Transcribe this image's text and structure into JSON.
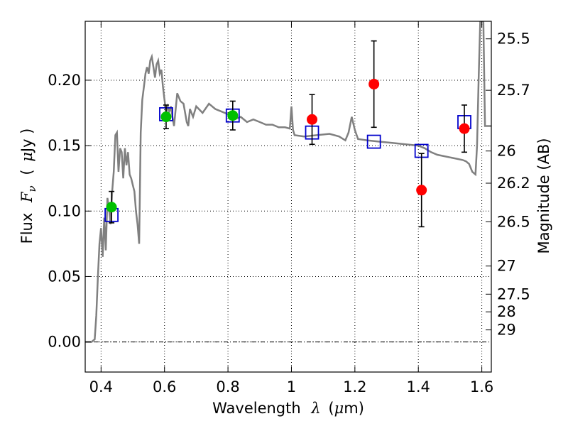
{
  "chart_data": {
    "type": "scatter",
    "title": "",
    "xlabel": "Wavelength  λ (μm)",
    "xlabel_parts": {
      "text": "Wavelength",
      "symbol": "λ",
      "unit_open": "(",
      "mu": "μ",
      "unit_close": "m)"
    },
    "ylabel": "Flux  Fν  ( μJy )",
    "ylabel_parts": {
      "text": "Flux",
      "symbol": "F",
      "subscript": "ν",
      "unit_open": "(",
      "mu": "μ",
      "unit_close": "Jy )"
    },
    "y2label": "Magnitude (AB)",
    "xlim": [
      0.35,
      1.63
    ],
    "ylim": [
      -0.023,
      0.245
    ],
    "x_ticks": [
      0.4,
      0.6,
      0.8,
      1.0,
      1.2,
      1.4,
      1.6
    ],
    "x_tick_labels": [
      "0.4",
      "0.6",
      "0.8",
      "1",
      "1.2",
      "1.4",
      "1.6"
    ],
    "y_ticks": [
      0.0,
      0.05,
      0.1,
      0.15,
      0.2
    ],
    "y_tick_labels": [
      "0.00",
      "0.05",
      "0.10",
      "0.15",
      "0.20"
    ],
    "y2_ticks": [
      {
        "label": "25.5",
        "flux": 0.2316
      },
      {
        "label": "25.7",
        "flux": 0.1923
      },
      {
        "label": "26",
        "flux": 0.1459
      },
      {
        "label": "26.2",
        "flux": 0.1213
      },
      {
        "label": "26.5",
        "flux": 0.0918
      },
      {
        "label": "27",
        "flux": 0.058
      },
      {
        "label": "27.5",
        "flux": 0.0365
      },
      {
        "label": "28",
        "flux": 0.023
      },
      {
        "label": "29",
        "flux": 0.0092
      }
    ],
    "grid": true,
    "zero_line": true,
    "colors": {
      "sed": "#808080",
      "green": "#00c000",
      "red": "#ff0000",
      "model_box": "#0000cc",
      "errorbar": "#000000"
    },
    "series": [
      {
        "kind": "line",
        "points": [
          [
            0.35,
            0
          ],
          [
            0.37,
            0
          ],
          [
            0.38,
            0.002
          ],
          [
            0.385,
            0.02
          ],
          [
            0.39,
            0.05
          ],
          [
            0.395,
            0.075
          ],
          [
            0.4,
            0.087
          ],
          [
            0.405,
            0.065
          ],
          [
            0.41,
            0.095
          ],
          [
            0.415,
            0.07
          ],
          [
            0.42,
            0.11
          ],
          [
            0.425,
            0.102
          ],
          [
            0.43,
            0.09
          ],
          [
            0.435,
            0.115
          ],
          [
            0.44,
            0.13
          ],
          [
            0.445,
            0.158
          ],
          [
            0.45,
            0.16
          ],
          [
            0.455,
            0.13
          ],
          [
            0.46,
            0.148
          ],
          [
            0.465,
            0.145
          ],
          [
            0.47,
            0.125
          ],
          [
            0.475,
            0.148
          ],
          [
            0.48,
            0.135
          ],
          [
            0.485,
            0.145
          ],
          [
            0.49,
            0.128
          ],
          [
            0.495,
            0.125
          ],
          [
            0.5,
            0.12
          ],
          [
            0.505,
            0.115
          ],
          [
            0.51,
            0.1
          ],
          [
            0.515,
            0.09
          ],
          [
            0.52,
            0.075
          ],
          [
            0.525,
            0.16
          ],
          [
            0.53,
            0.185
          ],
          [
            0.535,
            0.195
          ],
          [
            0.54,
            0.205
          ],
          [
            0.545,
            0.21
          ],
          [
            0.55,
            0.205
          ],
          [
            0.555,
            0.215
          ],
          [
            0.56,
            0.218
          ],
          [
            0.565,
            0.21
          ],
          [
            0.57,
            0.202
          ],
          [
            0.575,
            0.212
          ],
          [
            0.58,
            0.215
          ],
          [
            0.585,
            0.205
          ],
          [
            0.59,
            0.208
          ],
          [
            0.595,
            0.195
          ],
          [
            0.6,
            0.185
          ],
          [
            0.605,
            0.175
          ],
          [
            0.61,
            0.18
          ],
          [
            0.615,
            0.176
          ],
          [
            0.62,
            0.18
          ],
          [
            0.625,
            0.172
          ],
          [
            0.63,
            0.165
          ],
          [
            0.64,
            0.19
          ],
          [
            0.65,
            0.184
          ],
          [
            0.66,
            0.182
          ],
          [
            0.67,
            0.168
          ],
          [
            0.675,
            0.165
          ],
          [
            0.68,
            0.178
          ],
          [
            0.69,
            0.172
          ],
          [
            0.7,
            0.18
          ],
          [
            0.72,
            0.175
          ],
          [
            0.74,
            0.182
          ],
          [
            0.76,
            0.178
          ],
          [
            0.78,
            0.176
          ],
          [
            0.8,
            0.174
          ],
          [
            0.82,
            0.17
          ],
          [
            0.84,
            0.172
          ],
          [
            0.86,
            0.168
          ],
          [
            0.88,
            0.17
          ],
          [
            0.9,
            0.168
          ],
          [
            0.92,
            0.166
          ],
          [
            0.94,
            0.166
          ],
          [
            0.96,
            0.164
          ],
          [
            0.98,
            0.164
          ],
          [
            0.995,
            0.163
          ],
          [
            1.0,
            0.18
          ],
          [
            1.005,
            0.162
          ],
          [
            1.01,
            0.158
          ],
          [
            1.04,
            0.157
          ],
          [
            1.08,
            0.158
          ],
          [
            1.12,
            0.159
          ],
          [
            1.15,
            0.157
          ],
          [
            1.17,
            0.154
          ],
          [
            1.18,
            0.16
          ],
          [
            1.19,
            0.172
          ],
          [
            1.2,
            0.162
          ],
          [
            1.21,
            0.155
          ],
          [
            1.24,
            0.154
          ],
          [
            1.28,
            0.153
          ],
          [
            1.32,
            0.152
          ],
          [
            1.36,
            0.151
          ],
          [
            1.4,
            0.15
          ],
          [
            1.42,
            0.148
          ],
          [
            1.44,
            0.145
          ],
          [
            1.46,
            0.143
          ],
          [
            1.48,
            0.142
          ],
          [
            1.5,
            0.141
          ],
          [
            1.52,
            0.14
          ],
          [
            1.54,
            0.139
          ],
          [
            1.55,
            0.138
          ],
          [
            1.56,
            0.136
          ],
          [
            1.57,
            0.13
          ],
          [
            1.58,
            0.128
          ],
          [
            1.585,
            0.15
          ],
          [
            1.59,
            0.2
          ],
          [
            1.595,
            0.245
          ],
          [
            1.6,
            0.245
          ],
          [
            1.605,
            0.245
          ],
          [
            1.61,
            0.165
          ],
          [
            1.63,
            0.165
          ]
        ]
      },
      {
        "kind": "model-boxes",
        "points": [
          [
            0.433,
            0.097
          ],
          [
            0.605,
            0.174
          ],
          [
            0.815,
            0.173
          ],
          [
            1.065,
            0.16
          ],
          [
            1.26,
            0.153
          ],
          [
            1.41,
            0.146
          ],
          [
            1.545,
            0.168
          ]
        ]
      },
      {
        "kind": "measurements-green",
        "points": [
          [
            0.433,
            0.103,
            0.012
          ],
          [
            0.605,
            0.172,
            0.009
          ],
          [
            0.815,
            0.173,
            0.011
          ]
        ]
      },
      {
        "kind": "measurements-red",
        "points": [
          [
            1.065,
            0.17,
            0.019
          ],
          [
            1.26,
            0.197,
            0.033
          ],
          [
            1.41,
            0.116,
            0.028
          ],
          [
            1.545,
            0.163,
            0.018
          ]
        ]
      }
    ]
  }
}
